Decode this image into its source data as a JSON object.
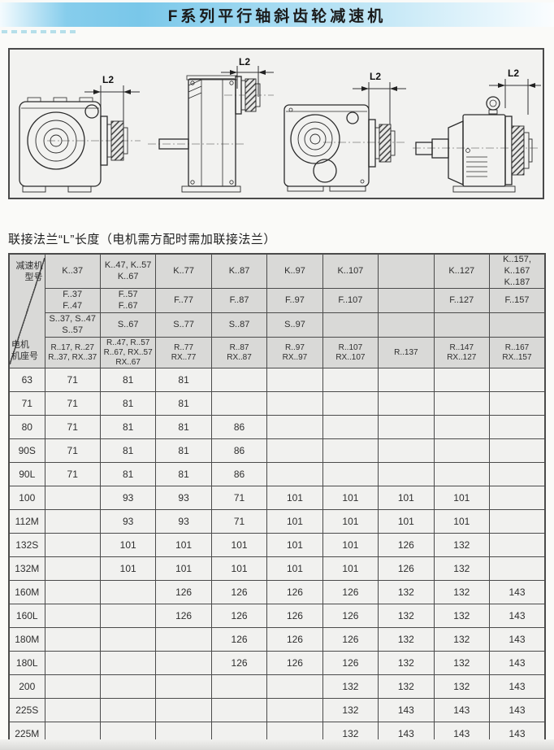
{
  "page": {
    "title": "F系列平行轴斜齿轮减速机",
    "caption": "联接法兰“L”长度（电机需方配时需加联接法兰）"
  },
  "drawings": {
    "items": [
      {
        "dim_label": "L2"
      },
      {
        "dim_label": "L2"
      },
      {
        "dim_label": "L2"
      },
      {
        "dim_label": "L2"
      }
    ]
  },
  "table": {
    "corner": {
      "top": "减速机\n型号",
      "bottom": "电机\n机座号"
    },
    "header_rows": [
      [
        "K..37",
        "K..47, K..57\nK..67",
        "K..77",
        "K..87",
        "K..97",
        "K..107",
        "",
        "K..127",
        "K..157, K..167\nK..187"
      ],
      [
        "F..37\nF..47",
        "F..57\nF..67",
        "F..77",
        "F..87",
        "F..97",
        "F..107",
        "",
        "F..127",
        "F..157"
      ],
      [
        "S..37, S..47\nS..57",
        "S..67",
        "S..77",
        "S..87",
        "S..97",
        "",
        "",
        "",
        ""
      ],
      [
        "R..17, R..27\nR..37, RX..37",
        "R..47, R..57\nR..67, RX..57\nRX..67",
        "R..77\nRX..77",
        "R..87\nRX..87",
        "R..97\nRX..97",
        "R..107\nRX..107",
        "R..137",
        "R..147\nRX..127",
        "R..167\nRX..157"
      ]
    ],
    "rows": [
      {
        "frame": "63",
        "values": [
          "71",
          "81",
          "81",
          "",
          "",
          "",
          "",
          "",
          ""
        ]
      },
      {
        "frame": "71",
        "values": [
          "71",
          "81",
          "81",
          "",
          "",
          "",
          "",
          "",
          ""
        ]
      },
      {
        "frame": "80",
        "values": [
          "71",
          "81",
          "81",
          "86",
          "",
          "",
          "",
          "",
          ""
        ]
      },
      {
        "frame": "90S",
        "values": [
          "71",
          "81",
          "81",
          "86",
          "",
          "",
          "",
          "",
          ""
        ]
      },
      {
        "frame": "90L",
        "values": [
          "71",
          "81",
          "81",
          "86",
          "",
          "",
          "",
          "",
          ""
        ]
      },
      {
        "frame": "100",
        "values": [
          "",
          "93",
          "93",
          "71",
          "101",
          "101",
          "101",
          "101",
          ""
        ]
      },
      {
        "frame": "112M",
        "values": [
          "",
          "93",
          "93",
          "71",
          "101",
          "101",
          "101",
          "101",
          ""
        ]
      },
      {
        "frame": "132S",
        "values": [
          "",
          "101",
          "101",
          "101",
          "101",
          "101",
          "126",
          "132",
          ""
        ]
      },
      {
        "frame": "132M",
        "values": [
          "",
          "101",
          "101",
          "101",
          "101",
          "101",
          "126",
          "132",
          ""
        ]
      },
      {
        "frame": "160M",
        "values": [
          "",
          "",
          "126",
          "126",
          "126",
          "126",
          "132",
          "132",
          "143"
        ]
      },
      {
        "frame": "160L",
        "values": [
          "",
          "",
          "126",
          "126",
          "126",
          "126",
          "132",
          "132",
          "143"
        ]
      },
      {
        "frame": "180M",
        "values": [
          "",
          "",
          "",
          "126",
          "126",
          "126",
          "132",
          "132",
          "143"
        ]
      },
      {
        "frame": "180L",
        "values": [
          "",
          "",
          "",
          "126",
          "126",
          "126",
          "132",
          "132",
          "143"
        ]
      },
      {
        "frame": "200",
        "values": [
          "",
          "",
          "",
          "",
          "",
          "132",
          "132",
          "132",
          "143"
        ]
      },
      {
        "frame": "225S",
        "values": [
          "",
          "",
          "",
          "",
          "",
          "132",
          "143",
          "143",
          "143"
        ]
      },
      {
        "frame": "225M",
        "values": [
          "",
          "",
          "",
          "",
          "",
          "132",
          "143",
          "143",
          "143"
        ]
      }
    ]
  },
  "colors": {
    "banner_blue": "#79c7e9",
    "header_gray": "#d9d9d7",
    "cell_light": "#f1f1ef",
    "border_dark": "#4b4b4b"
  }
}
